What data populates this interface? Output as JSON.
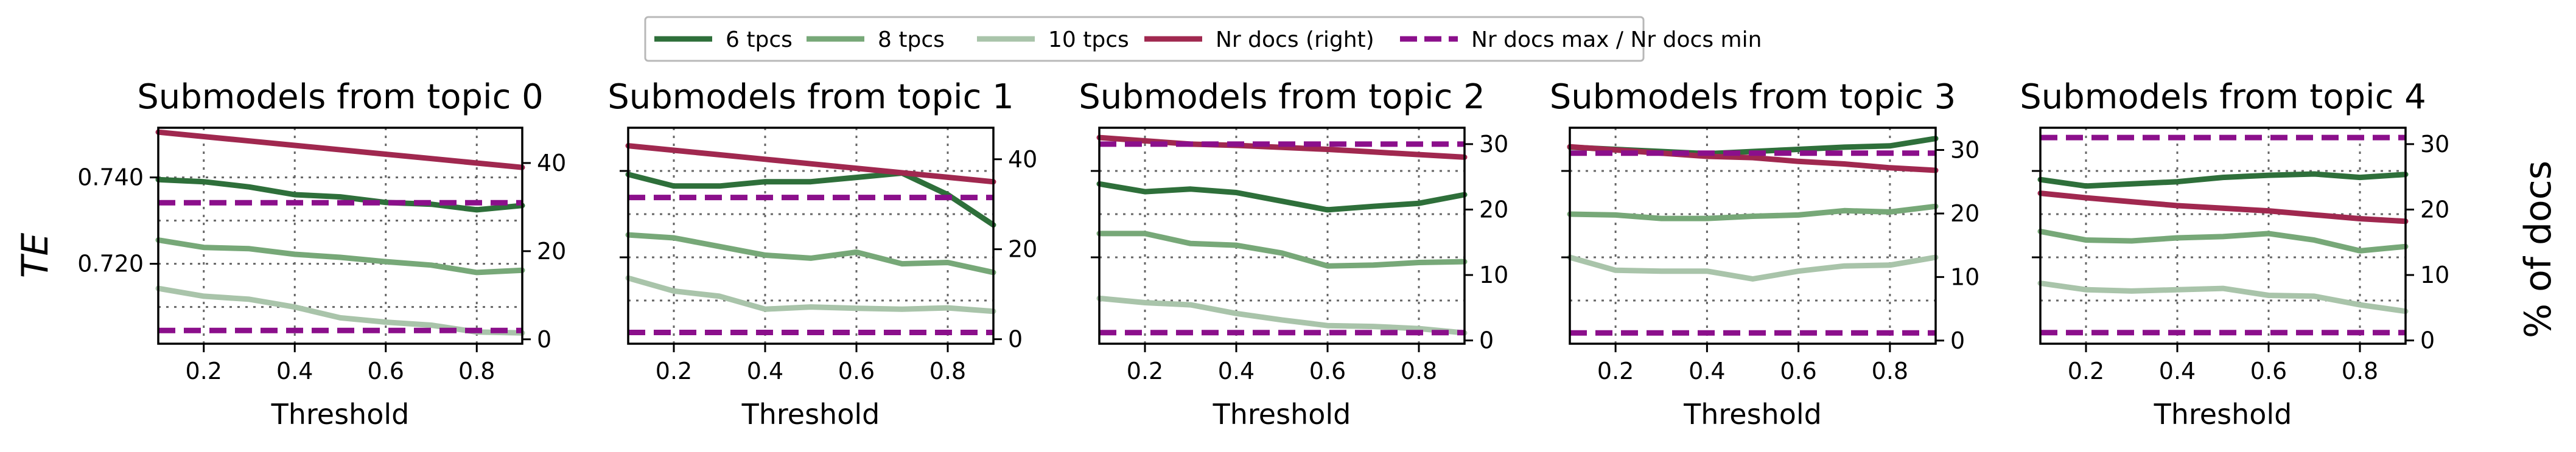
{
  "legend": [
    {
      "label": "6 tpcs",
      "color": "#2e6f3a",
      "style": "solid"
    },
    {
      "label": "8 tpcs",
      "color": "#77a878",
      "style": "solid"
    },
    {
      "label": "10 tpcs",
      "color": "#a9c4aa",
      "style": "solid"
    },
    {
      "label": "Nr docs (right)",
      "color": "#a0284f",
      "style": "solid"
    },
    {
      "label": "Nr docs max / Nr docs min",
      "color": "#8b0f8b",
      "style": "dashed"
    }
  ],
  "left_axis_label": "TE",
  "right_axis_label": "% of docs",
  "chart_data": [
    {
      "type": "line",
      "title": "Submodels from topic 0",
      "xlabel": "Threshold",
      "x": [
        0.1,
        0.2,
        0.3,
        0.4,
        0.5,
        0.6,
        0.7,
        0.8,
        0.9
      ],
      "xlim": [
        0.1,
        0.9
      ],
      "xticks": [
        "0.2",
        "0.4",
        "0.6",
        "0.8"
      ],
      "ylim": [
        0.7015,
        0.7515
      ],
      "yticks": [
        "0.720",
        "0.740"
      ],
      "y2lim": [
        -1,
        48
      ],
      "y2ticks": [
        "0",
        "20",
        "40"
      ],
      "series": [
        {
          "name": "6 tpcs",
          "axis": "left",
          "values": [
            0.7395,
            0.739,
            0.7378,
            0.736,
            0.7355,
            0.7342,
            0.7338,
            0.7325,
            0.7335
          ]
        },
        {
          "name": "8 tpcs",
          "axis": "left",
          "values": [
            0.7255,
            0.7238,
            0.7235,
            0.7222,
            0.7215,
            0.7205,
            0.7197,
            0.718,
            0.7185
          ]
        },
        {
          "name": "10 tpcs",
          "axis": "left",
          "values": [
            0.7143,
            0.7125,
            0.7118,
            0.71,
            0.7075,
            0.7065,
            0.7058,
            0.7042,
            0.704
          ]
        },
        {
          "name": "Nr docs (right)",
          "axis": "right",
          "values": [
            47,
            46,
            45,
            44,
            43,
            42,
            41,
            40,
            39
          ]
        },
        {
          "name": "Nr docs max / Nr docs min",
          "axis": "right",
          "dashed": true,
          "values": [
            2,
            2,
            2,
            2,
            2,
            2,
            2,
            2,
            2
          ]
        },
        {
          "name": "Nr docs max / Nr docs min",
          "axis": "right",
          "dashed": true,
          "values": [
            31,
            31,
            31,
            31,
            31,
            31,
            31,
            31,
            31
          ]
        }
      ]
    },
    {
      "type": "line",
      "title": "Submodels from topic 1",
      "xlabel": "Threshold",
      "x": [
        0.1,
        0.2,
        0.3,
        0.4,
        0.5,
        0.6,
        0.7,
        0.8,
        0.9
      ],
      "xlim": [
        0.1,
        0.9
      ],
      "xticks": [
        "0.2",
        "0.4",
        "0.6",
        "0.8"
      ],
      "ylim": [
        0.7,
        0.75
      ],
      "yticks": [],
      "y2lim": [
        -1,
        47
      ],
      "y2ticks": [
        "0",
        "20",
        "40"
      ],
      "series": [
        {
          "name": "6 tpcs",
          "axis": "left",
          "values": [
            0.7392,
            0.7365,
            0.7365,
            0.7375,
            0.7375,
            0.7385,
            0.7395,
            0.7345,
            0.7275
          ]
        },
        {
          "name": "8 tpcs",
          "axis": "left",
          "values": [
            0.7252,
            0.7245,
            0.7225,
            0.7205,
            0.7198,
            0.7212,
            0.7185,
            0.7188,
            0.7165
          ]
        },
        {
          "name": "10 tpcs",
          "axis": "left",
          "values": [
            0.7152,
            0.7122,
            0.711,
            0.708,
            0.7085,
            0.7082,
            0.708,
            0.7083,
            0.7075
          ]
        },
        {
          "name": "Nr docs (right)",
          "axis": "right",
          "values": [
            43,
            42,
            41,
            40,
            39,
            38,
            37,
            36,
            35
          ]
        },
        {
          "name": "Nr docs max / Nr docs min",
          "axis": "right",
          "dashed": true,
          "values": [
            1.5,
            1.5,
            1.5,
            1.5,
            1.5,
            1.5,
            1.5,
            1.5,
            1.5
          ]
        },
        {
          "name": "Nr docs max / Nr docs min",
          "axis": "right",
          "dashed": true,
          "values": [
            31.5,
            31.5,
            31.5,
            31.5,
            31.5,
            31.5,
            31.5,
            31.5,
            31.5
          ]
        }
      ]
    },
    {
      "type": "line",
      "title": "Submodels from topic 2",
      "xlabel": "Threshold",
      "x": [
        0.1,
        0.2,
        0.3,
        0.4,
        0.5,
        0.6,
        0.7,
        0.8,
        0.9
      ],
      "xlim": [
        0.1,
        0.9
      ],
      "xticks": [
        "0.2",
        "0.4",
        "0.6",
        "0.8"
      ],
      "ylim": [
        0.7,
        0.75
      ],
      "yticks": [],
      "y2lim": [
        -0.5,
        32.5
      ],
      "y2ticks": [
        "0",
        "10",
        "20",
        "30"
      ],
      "series": [
        {
          "name": "6 tpcs",
          "axis": "left",
          "values": [
            0.737,
            0.7352,
            0.7358,
            0.735,
            0.733,
            0.731,
            0.7318,
            0.7325,
            0.7345
          ]
        },
        {
          "name": "8 tpcs",
          "axis": "left",
          "values": [
            0.7255,
            0.7255,
            0.7232,
            0.7228,
            0.721,
            0.718,
            0.7182,
            0.7188,
            0.719
          ]
        },
        {
          "name": "10 tpcs",
          "axis": "left",
          "values": [
            0.7105,
            0.7095,
            0.709,
            0.707,
            0.7055,
            0.7042,
            0.704,
            0.7035,
            0.7025
          ]
        },
        {
          "name": "Nr docs (right)",
          "axis": "right",
          "values": [
            31,
            30.5,
            30,
            29.8,
            29.5,
            29.2,
            28.8,
            28.4,
            28
          ]
        },
        {
          "name": "Nr docs max / Nr docs min",
          "axis": "right",
          "dashed": true,
          "values": [
            1.2,
            1.2,
            1.2,
            1.2,
            1.2,
            1.2,
            1.2,
            1.2,
            1.2
          ]
        },
        {
          "name": "Nr docs max / Nr docs min",
          "axis": "right",
          "dashed": true,
          "values": [
            30,
            30,
            30,
            30,
            30,
            30,
            30,
            30,
            30
          ]
        }
      ]
    },
    {
      "type": "line",
      "title": "Submodels from topic 3",
      "xlabel": "Threshold",
      "x": [
        0.1,
        0.2,
        0.3,
        0.4,
        0.5,
        0.6,
        0.7,
        0.8,
        0.9
      ],
      "xlim": [
        0.1,
        0.9
      ],
      "xticks": [
        "0.2",
        "0.4",
        "0.6",
        "0.8"
      ],
      "ylim": [
        0.7,
        0.75
      ],
      "yticks": [],
      "y2lim": [
        -0.5,
        33.5
      ],
      "y2ticks": [
        "0",
        "10",
        "20",
        "30"
      ],
      "series": [
        {
          "name": "6 tpcs",
          "axis": "left",
          "values": [
            0.7455,
            0.745,
            0.7445,
            0.744,
            0.7445,
            0.745,
            0.7455,
            0.7458,
            0.7475
          ]
        },
        {
          "name": "8 tpcs",
          "axis": "left",
          "values": [
            0.73,
            0.7298,
            0.729,
            0.729,
            0.7295,
            0.7298,
            0.7308,
            0.7305,
            0.7318
          ]
        },
        {
          "name": "10 tpcs",
          "axis": "left",
          "values": [
            0.72,
            0.717,
            0.7168,
            0.7168,
            0.715,
            0.7168,
            0.718,
            0.7182,
            0.72
          ]
        },
        {
          "name": "Nr docs (right)",
          "axis": "right",
          "values": [
            30.5,
            30,
            29.5,
            29,
            28.8,
            28.2,
            27.8,
            27.2,
            26.8
          ]
        },
        {
          "name": "Nr docs max / Nr docs min",
          "axis": "right",
          "dashed": true,
          "values": [
            1.2,
            1.2,
            1.2,
            1.2,
            1.2,
            1.2,
            1.2,
            1.2,
            1.2
          ]
        },
        {
          "name": "Nr docs max / Nr docs min",
          "axis": "right",
          "dashed": true,
          "values": [
            29.5,
            29.5,
            29.5,
            29.5,
            29.5,
            29.5,
            29.5,
            29.5,
            29.5
          ]
        }
      ]
    },
    {
      "type": "line",
      "title": "Submodels from topic 4",
      "xlabel": "Threshold",
      "x": [
        0.1,
        0.2,
        0.3,
        0.4,
        0.5,
        0.6,
        0.7,
        0.8,
        0.9
      ],
      "xlim": [
        0.1,
        0.9
      ],
      "xticks": [
        "0.2",
        "0.4",
        "0.6",
        "0.8"
      ],
      "ylim": [
        0.7,
        0.75
      ],
      "yticks": [],
      "y2lim": [
        -0.5,
        32.5
      ],
      "y2ticks": [
        "0",
        "10",
        "20",
        "30"
      ],
      "series": [
        {
          "name": "6 tpcs",
          "axis": "left",
          "values": [
            0.738,
            0.7365,
            0.737,
            0.7375,
            0.7385,
            0.739,
            0.7393,
            0.7385,
            0.7392
          ]
        },
        {
          "name": "8 tpcs",
          "axis": "left",
          "values": [
            0.726,
            0.724,
            0.7238,
            0.7245,
            0.7248,
            0.7255,
            0.724,
            0.7215,
            0.7225
          ]
        },
        {
          "name": "10 tpcs",
          "axis": "left",
          "values": [
            0.714,
            0.7125,
            0.7122,
            0.7125,
            0.7128,
            0.7112,
            0.711,
            0.709,
            0.7075
          ]
        },
        {
          "name": "Nr docs (right)",
          "axis": "right",
          "values": [
            22.5,
            21.8,
            21.2,
            20.6,
            20.2,
            19.8,
            19.2,
            18.6,
            18.2
          ]
        },
        {
          "name": "Nr docs max / Nr docs min",
          "axis": "right",
          "dashed": true,
          "values": [
            1.2,
            1.2,
            1.2,
            1.2,
            1.2,
            1.2,
            1.2,
            1.2,
            1.2
          ]
        },
        {
          "name": "Nr docs max / Nr docs min",
          "axis": "right",
          "dashed": true,
          "values": [
            31,
            31,
            31,
            31,
            31,
            31,
            31,
            31,
            31
          ]
        }
      ]
    }
  ]
}
